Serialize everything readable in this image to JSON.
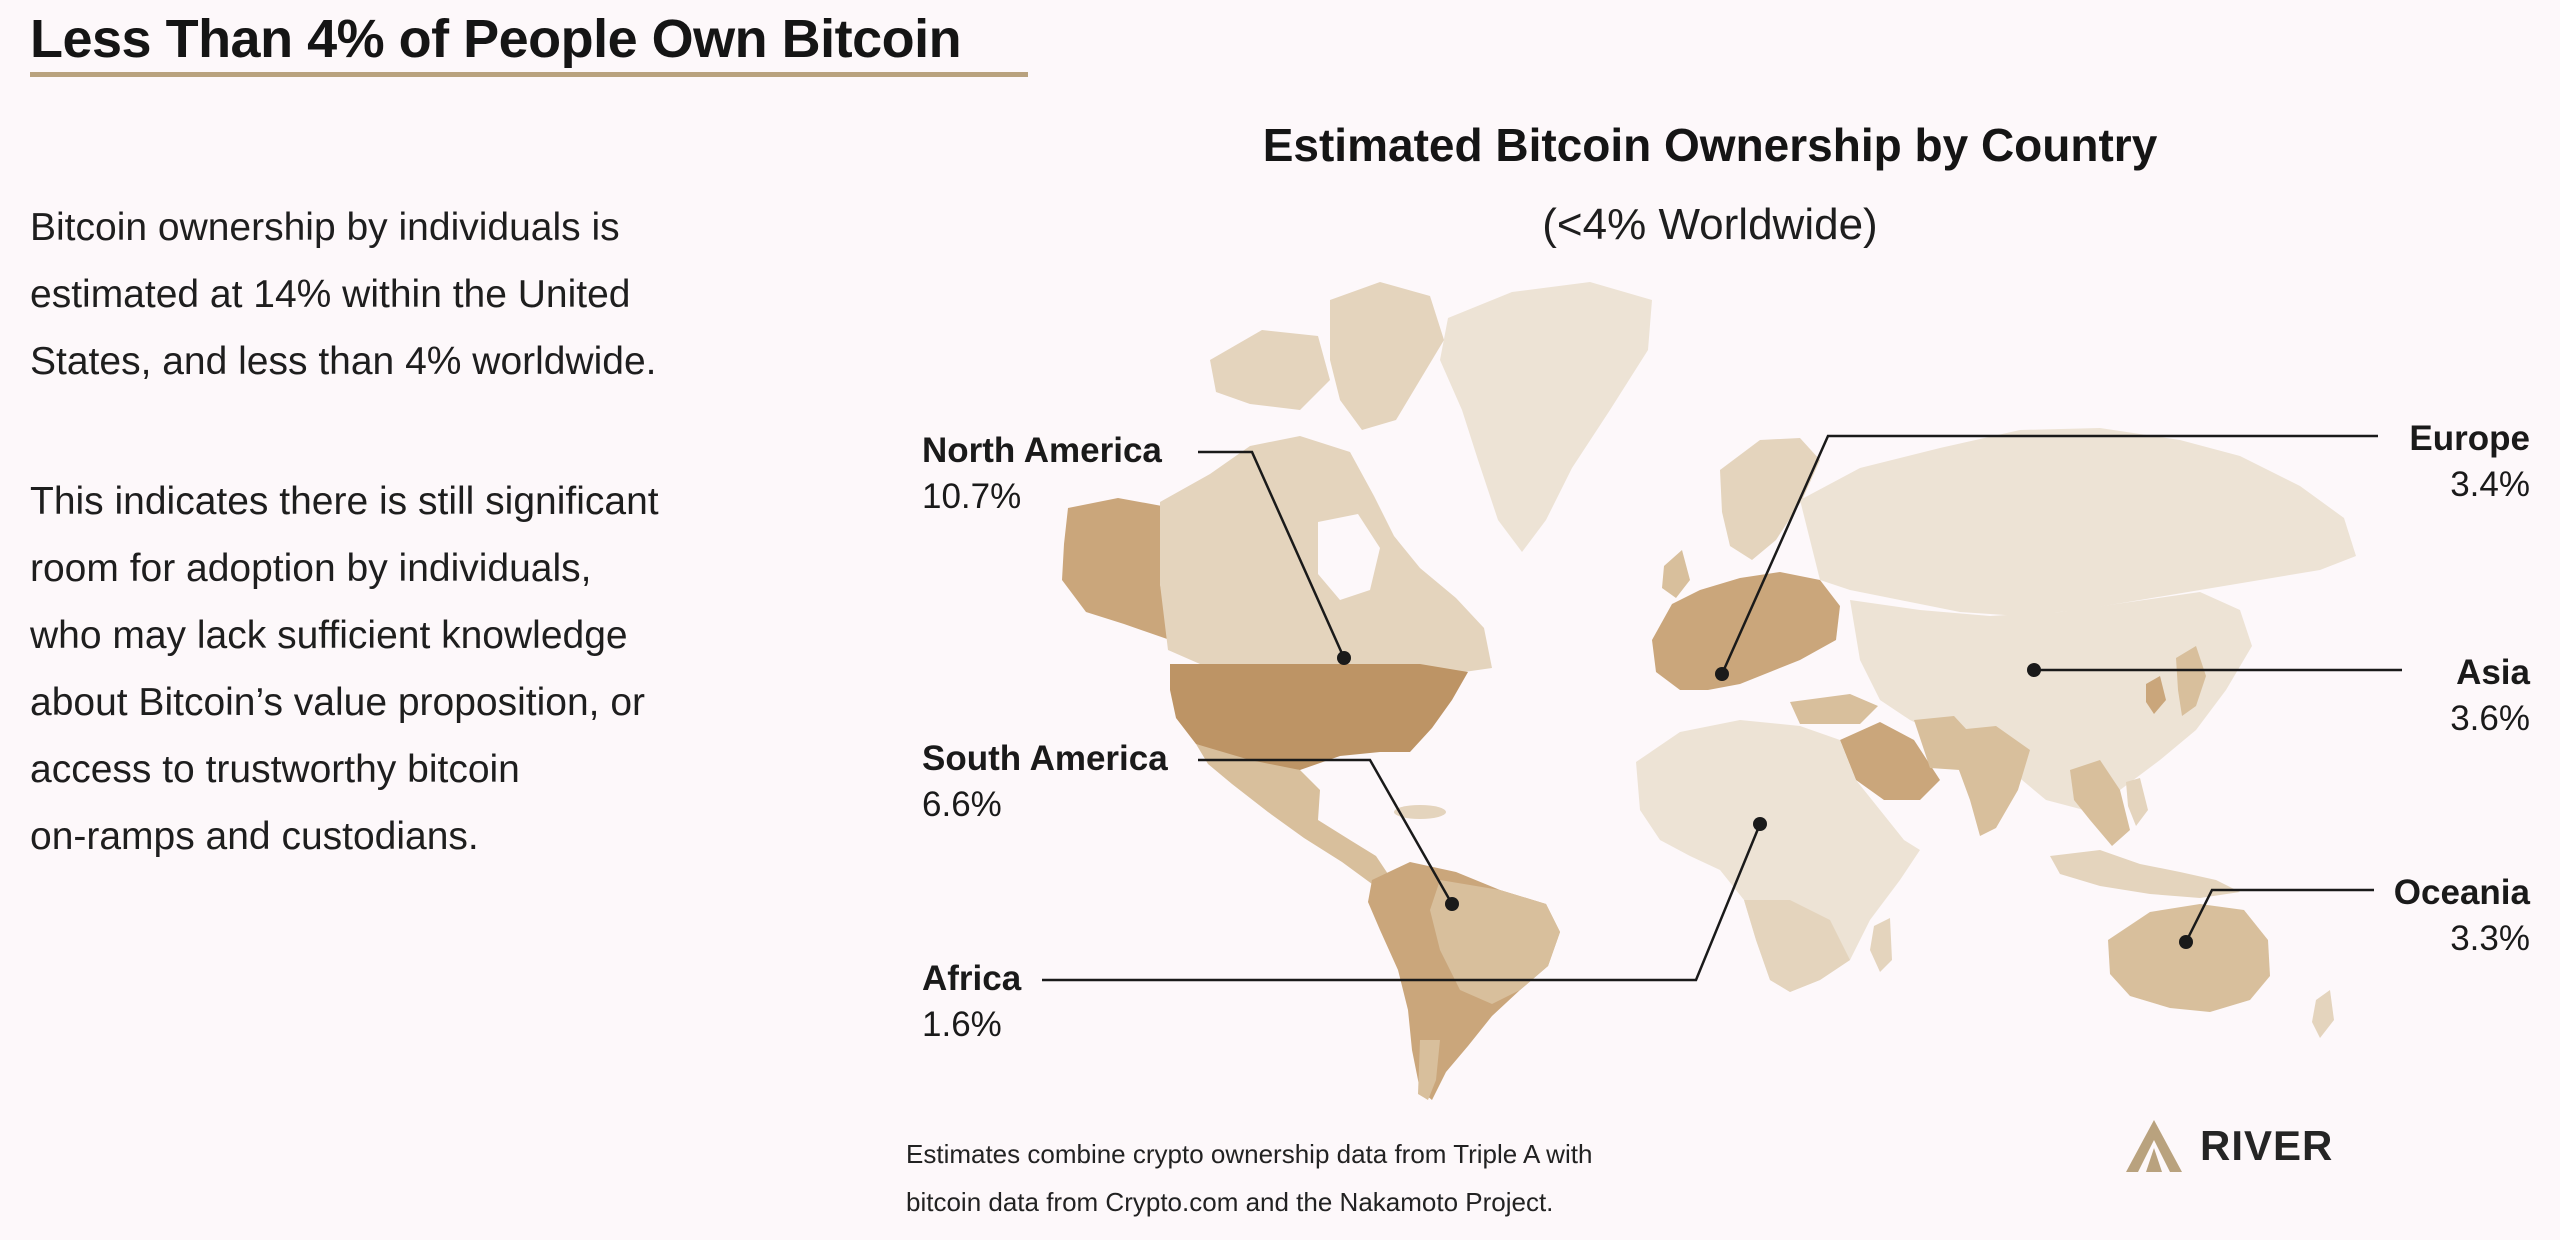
{
  "header": {
    "title": "Less Than 4% of People Own Bitcoin"
  },
  "body": {
    "paragraph1_lines": [
      "Bitcoin ownership by individuals is",
      "estimated at 14% within the United",
      "States, and less than 4% worldwide."
    ],
    "paragraph2_lines": [
      "This indicates there is still significant",
      "room for adoption by individuals,",
      "who may lack sufficient knowledge",
      "about Bitcoin’s value proposition, or",
      "access to trustworthy bitcoin",
      "on-ramps and custodians."
    ]
  },
  "map": {
    "title": "Estimated Bitcoin Ownership by Country",
    "subtitle": "(<4% Worldwide)",
    "regions": [
      {
        "key": "na",
        "name": "North America",
        "value_label": "10.7%",
        "value": 10.7
      },
      {
        "key": "sa",
        "name": "South America",
        "value_label": "6.6%",
        "value": 6.6
      },
      {
        "key": "af",
        "name": "Africa",
        "value_label": "1.6%",
        "value": 1.6
      },
      {
        "key": "eu",
        "name": "Europe",
        "value_label": "3.4%",
        "value": 3.4
      },
      {
        "key": "as",
        "name": "Asia",
        "value_label": "3.6%",
        "value": 3.6
      },
      {
        "key": "oc",
        "name": "Oceania",
        "value_label": "3.3%",
        "value": 3.3
      }
    ],
    "colors": {
      "lightest": "#ede3d5",
      "light": "#e4d4bd",
      "medium": "#d8bf9c",
      "dark": "#caa67b",
      "darkest": "#bd9465",
      "leader_line": "#1a1a1a"
    }
  },
  "footnote_lines": [
    "Estimates combine crypto ownership data from Triple A with",
    "bitcoin data from Crypto.com and the Nakamoto Project."
  ],
  "logo": {
    "text": "RIVER",
    "color": "#b9a27e"
  }
}
